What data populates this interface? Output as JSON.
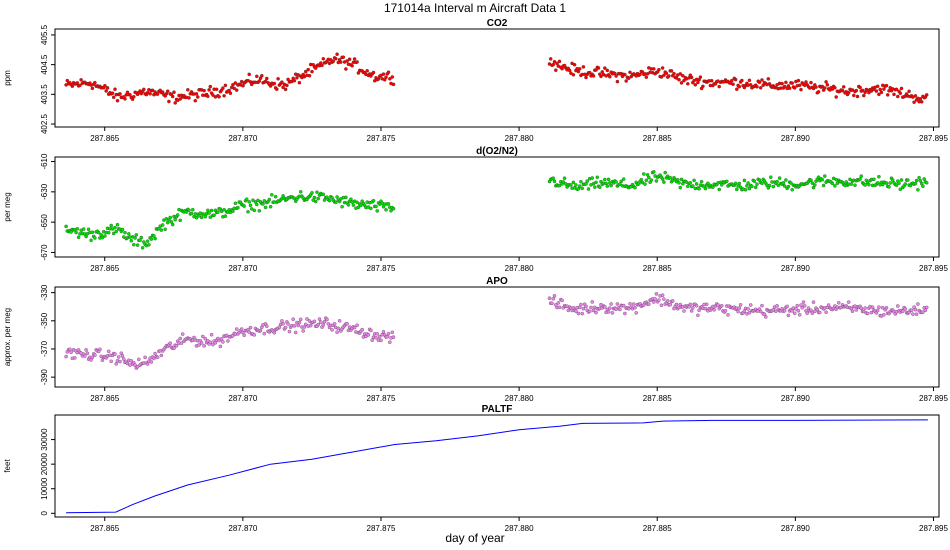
{
  "page_title": "171014a   Interval m Aircraft Data 1",
  "x_axis_title": "day of year",
  "chart_data": [
    {
      "type": "scatter",
      "title": "CO2",
      "ylabel": "ppm",
      "color": "#ff0000",
      "xlim": [
        287.8632,
        287.8952
      ],
      "ylim": [
        402.4,
        405.7
      ],
      "yticks": [
        402.5,
        403.5,
        404.5,
        405.5
      ],
      "ytick_labels": [
        "402.5",
        "403.5",
        "404.5",
        "405.5"
      ],
      "xticks": [
        287.865,
        287.87,
        287.875,
        287.88,
        287.885,
        287.89,
        287.895
      ],
      "xtick_labels": [
        "287.865",
        "287.870",
        "287.875",
        "287.880",
        "287.885",
        "287.890",
        "287.895"
      ],
      "series": [
        {
          "segments": [
            {
              "x": [
                287.8636,
                287.8645,
                287.8655,
                287.8665,
                287.8675,
                287.8685,
                287.8695,
                287.8705,
                287.8715,
                287.8725,
                287.8733,
                287.874,
                287.8748,
                287.8755
              ],
              "y": [
                403.8,
                403.9,
                403.4,
                403.6,
                403.4,
                403.5,
                403.7,
                404.0,
                403.8,
                404.3,
                404.7,
                404.5,
                404.1,
                404.1
              ]
            },
            {
              "x": [
                287.8811,
                287.882,
                287.883,
                287.884,
                287.885,
                287.886,
                287.887,
                287.888,
                287.889,
                287.89,
                287.891,
                287.892,
                287.893,
                287.894,
                287.8948
              ],
              "y": [
                404.6,
                404.3,
                404.2,
                404.1,
                404.3,
                404.0,
                403.9,
                403.9,
                403.8,
                403.8,
                403.7,
                403.6,
                403.7,
                403.5,
                403.3
              ]
            }
          ]
        }
      ]
    },
    {
      "type": "scatter",
      "title": "d(O2/N2)",
      "ylabel": "per meg",
      "color": "#00e000",
      "xlim": [
        287.8632,
        287.8952
      ],
      "ylim": [
        -673,
        -607
      ],
      "yticks": [
        -610,
        -630,
        -650,
        -670
      ],
      "ytick_labels": [
        "-610",
        "-630",
        "-650",
        "-670"
      ],
      "xticks": [
        287.865,
        287.87,
        287.875,
        287.88,
        287.885,
        287.89,
        287.895
      ],
      "xtick_labels": [
        "287.865",
        "287.870",
        "287.875",
        "287.880",
        "287.885",
        "287.890",
        "287.895"
      ],
      "series": [
        {
          "segments": [
            {
              "x": [
                287.8636,
                287.8645,
                287.8655,
                287.866,
                287.8665,
                287.8672,
                287.868,
                287.869,
                287.87,
                287.871,
                287.872,
                287.873,
                287.874,
                287.875,
                287.8755
              ],
              "y": [
                -655,
                -658,
                -655,
                -662,
                -664,
                -650,
                -643,
                -645,
                -639,
                -637,
                -633,
                -634,
                -638,
                -640,
                -641
              ]
            },
            {
              "x": [
                287.8811,
                287.882,
                287.883,
                287.884,
                287.885,
                287.886,
                287.887,
                287.888,
                287.889,
                287.89,
                287.891,
                287.892,
                287.893,
                287.894,
                287.8948
              ],
              "y": [
                -622,
                -627,
                -624,
                -626,
                -620,
                -625,
                -625,
                -626,
                -624,
                -625,
                -623,
                -623,
                -624,
                -625,
                -623
              ]
            }
          ]
        }
      ]
    },
    {
      "type": "scatter",
      "title": "APO",
      "ylabel": "approx. per meg",
      "color": "#ee82ee",
      "xlim": [
        287.8632,
        287.8952
      ],
      "ylim": [
        -397,
        -326
      ],
      "yticks": [
        -330,
        -350,
        -370,
        -390
      ],
      "ytick_labels": [
        "-330",
        "-350",
        "-370",
        "-390"
      ],
      "xticks": [
        287.865,
        287.87,
        287.875,
        287.88,
        287.885,
        287.89,
        287.895
      ],
      "xtick_labels": [
        "287.865",
        "287.870",
        "287.875",
        "287.880",
        "287.885",
        "287.890",
        "287.895"
      ],
      "series": [
        {
          "segments": [
            {
              "x": [
                287.8636,
                287.8645,
                287.8655,
                287.866,
                287.8665,
                287.8672,
                287.868,
                287.869,
                287.87,
                287.871,
                287.872,
                287.873,
                287.874,
                287.875,
                287.8755
              ],
              "y": [
                -373,
                -374,
                -376,
                -381,
                -380,
                -370,
                -363,
                -365,
                -357,
                -355,
                -353,
                -352,
                -356,
                -361,
                -361
              ]
            },
            {
              "x": [
                287.8811,
                287.882,
                287.883,
                287.884,
                287.885,
                287.886,
                287.887,
                287.888,
                287.889,
                287.89,
                287.891,
                287.892,
                287.893,
                287.894,
                287.8948
              ],
              "y": [
                -336,
                -342,
                -340,
                -341,
                -334,
                -341,
                -341,
                -342,
                -343,
                -342,
                -341,
                -341,
                -343,
                -343,
                -342
              ]
            }
          ]
        }
      ]
    },
    {
      "type": "line",
      "title": "PALTF",
      "ylabel": "feet",
      "color": "#0000ff",
      "xlim": [
        287.8632,
        287.8952
      ],
      "ylim": [
        -1500,
        40000
      ],
      "yticks": [
        0,
        10000,
        20000,
        30000
      ],
      "ytick_labels": [
        "0",
        "10000",
        "20000",
        "30000"
      ],
      "xticks": [
        287.865,
        287.87,
        287.875,
        287.88,
        287.885,
        287.89,
        287.895
      ],
      "xtick_labels": [
        "287.865",
        "287.870",
        "287.875",
        "287.880",
        "287.885",
        "287.890",
        "287.895"
      ],
      "series": [
        {
          "x": [
            287.8636,
            287.8654,
            287.866,
            287.8668,
            287.868,
            287.8695,
            287.871,
            287.8725,
            287.874,
            287.8755,
            287.877,
            287.8785,
            287.88,
            287.8815,
            287.8823,
            287.8845,
            287.8852,
            287.887,
            287.89,
            287.8948
          ],
          "y": [
            250,
            500,
            3500,
            7000,
            11500,
            15500,
            20000,
            22000,
            25000,
            28000,
            29500,
            31500,
            34000,
            35500,
            36600,
            36800,
            37500,
            37800,
            37800,
            38000
          ]
        }
      ]
    }
  ]
}
